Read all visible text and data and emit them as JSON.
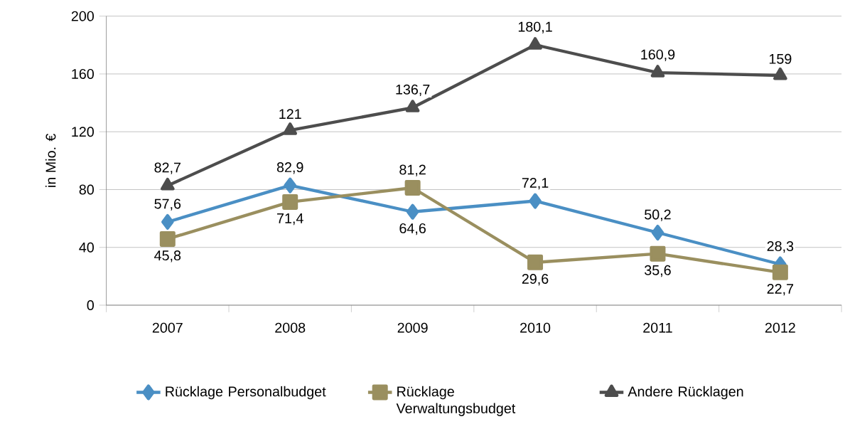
{
  "chart_data": {
    "type": "line",
    "ylabel": "in Mio. €",
    "categories": [
      "2007",
      "2008",
      "2009",
      "2010",
      "2011",
      "2012"
    ],
    "series": [
      {
        "name": "Rücklage Personalbudget",
        "color": "#4a8fc4",
        "marker": "diamond",
        "values": [
          57.6,
          82.9,
          64.6,
          72.1,
          50.2,
          28.3
        ],
        "value_labels": [
          "57,6",
          "82,9",
          "64,6",
          "72,1",
          "50,2",
          "28,3"
        ]
      },
      {
        "name": "Rücklage Verwaltungsbudget",
        "color": "#9a8f5f",
        "marker": "square",
        "values": [
          45.8,
          71.4,
          81.2,
          29.6,
          35.6,
          22.7
        ],
        "value_labels": [
          "45,8",
          "71,4",
          "81,2",
          "29,6",
          "35,6",
          "22,7"
        ]
      },
      {
        "name": "Andere Rücklagen",
        "color": "#4d4d4d",
        "marker": "triangle",
        "values": [
          82.7,
          121,
          136.7,
          180.1,
          160.9,
          159
        ],
        "value_labels": [
          "82,7",
          "121",
          "136,7",
          "180,1",
          "160,9",
          "159"
        ]
      }
    ],
    "ylim": [
      0,
      200
    ],
    "yticks": [
      0,
      40,
      80,
      120,
      160,
      200
    ],
    "grid": "y",
    "legend": "bottom",
    "line_style": "solid"
  }
}
